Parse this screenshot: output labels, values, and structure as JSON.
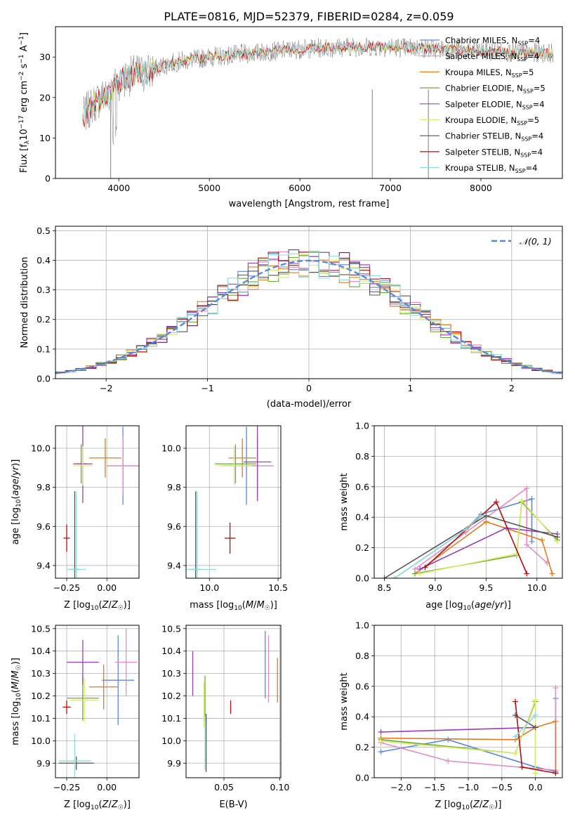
{
  "figure_title": "PLATE=0816, MJD=52379, FIBERID=0284, z=0.059",
  "colors": {
    "Chabrier MILES": "#5b87d9",
    "Salpeter MILES": "#e58ac2",
    "Kroupa MILES": "#e07b1f",
    "Chabrier ELODIE": "#6aaa3a",
    "Salpeter ELODIE": "#9b3cb8",
    "Kroupa ELODIE": "#d9ec6a",
    "Chabrier STELIB": "#555555",
    "Salpeter STELIB": "#b01010",
    "Kroupa STELIB": "#8fdcdc",
    "data": "#808080",
    "normal": "#5b87d9"
  },
  "chart_data": [
    {
      "id": "spectrum",
      "type": "line",
      "xlabel": "wavelength [Angstrom, rest frame]",
      "ylabel": "Flux [f_λ 10^-17 erg cm^-2 s^-1 A^-1]",
      "xlim": [
        3300,
        8900
      ],
      "ylim": [
        0,
        37.5
      ],
      "xticks": [
        4000,
        5000,
        6000,
        7000,
        8000
      ],
      "yticks": [
        0,
        10,
        20,
        30
      ],
      "legend_position": "upper right",
      "series": [
        {
          "name": "Chabrier MILES",
          "nssp": "4"
        },
        {
          "name": "Salpeter MILES",
          "nssp": "4"
        },
        {
          "name": "Kroupa MILES",
          "nssp": "5"
        },
        {
          "name": "Chabrier ELODIE",
          "nssp": "5"
        },
        {
          "name": "Salpeter ELODIE",
          "nssp": "4"
        },
        {
          "name": "Kroupa ELODIE",
          "nssp": "5"
        },
        {
          "name": "Chabrier STELIB",
          "nssp": "4"
        },
        {
          "name": "Salpeter STELIB",
          "nssp": "4"
        },
        {
          "name": "Kroupa STELIB",
          "nssp": "4"
        }
      ],
      "continuum": {
        "x": [
          3600,
          3700,
          3800,
          3900,
          4000,
          4100,
          4200,
          4300,
          4500,
          4700,
          5000,
          5500,
          6000,
          6500,
          7000,
          7500,
          8000,
          8500,
          8800
        ],
        "y": [
          15,
          18,
          20,
          21,
          24,
          25,
          26,
          26,
          28,
          29,
          30,
          31,
          32,
          32.5,
          32.5,
          32,
          31.5,
          31,
          31
        ]
      }
    },
    {
      "id": "residuals",
      "type": "bar",
      "xlabel": "(data-model)/error",
      "ylabel": "Normed distribution",
      "xlim": [
        -2.5,
        2.5
      ],
      "ylim": [
        0,
        0.515
      ],
      "xticks": [
        -2,
        -1,
        0,
        1,
        2
      ],
      "yticks": [
        0.0,
        0.1,
        0.2,
        0.3,
        0.4,
        0.5
      ],
      "grid": true,
      "legend_position": "upper right",
      "normal_label": "𝒩(0, 1)",
      "bin_width": 0.1,
      "bin_start": -2.5
    },
    {
      "id": "age_vs_Z",
      "type": "scatter",
      "xlabel": "Z [log10(Z/Z☉)]",
      "ylabel": "age  [log10(age/yr)]",
      "xlim": [
        -0.32,
        0.2
      ],
      "ylim": [
        9.335,
        10.115
      ],
      "xticks": [
        -0.25,
        0.0
      ],
      "yticks": [
        9.4,
        9.6,
        9.8,
        10.0
      ],
      "grid": true,
      "points": [
        {
          "series": "Chabrier MILES",
          "x": 0.1,
          "y": 9.91,
          "xerr": 0.1,
          "yerr": 0.2
        },
        {
          "series": "Salpeter MILES",
          "x": 0.1,
          "y": 9.91,
          "xerr": 0.1,
          "yerr": 0.15
        },
        {
          "series": "Kroupa MILES",
          "x": -0.01,
          "y": 9.95,
          "xerr": 0.1,
          "yerr": 0.1
        },
        {
          "series": "Chabrier ELODIE",
          "x": -0.16,
          "y": 9.92,
          "xerr": 0.04,
          "yerr": 0.1
        },
        {
          "series": "Salpeter ELODIE",
          "x": -0.15,
          "y": 9.92,
          "xerr": 0.06,
          "yerr": 0.2
        },
        {
          "series": "Kroupa ELODIE",
          "x": -0.15,
          "y": 9.91,
          "xerr": 0.06,
          "yerr": 0.1
        },
        {
          "series": "Chabrier STELIB",
          "x": -0.2,
          "y": 9.38,
          "xerr": 0.03,
          "yerr": 0.4
        },
        {
          "series": "Salpeter STELIB",
          "x": -0.25,
          "y": 9.54,
          "xerr": 0.02,
          "yerr": 0.07
        },
        {
          "series": "Kroupa STELIB",
          "x": -0.19,
          "y": 9.38,
          "xerr": 0.06,
          "yerr": 0.4
        }
      ]
    },
    {
      "id": "age_vs_mass",
      "type": "scatter",
      "xlabel": "mass [log10(M/M☉)]",
      "ylabel": "",
      "xlim": [
        9.83,
        10.52
      ],
      "ylim": [
        9.335,
        10.115
      ],
      "xticks": [
        10.0,
        10.5
      ],
      "yticks": [
        9.4,
        9.6,
        9.8,
        10.0
      ],
      "grid": true,
      "points": [
        {
          "series": "Chabrier MILES",
          "x": 10.27,
          "y": 9.91,
          "xerr": 0.18,
          "yerr": 0.2
        },
        {
          "series": "Salpeter MILES",
          "x": 10.35,
          "y": 9.91,
          "xerr": 0.12,
          "yerr": 0.15
        },
        {
          "series": "Kroupa MILES",
          "x": 10.24,
          "y": 9.95,
          "xerr": 0.1,
          "yerr": 0.1
        },
        {
          "series": "Chabrier ELODIE",
          "x": 10.19,
          "y": 9.92,
          "xerr": 0.15,
          "yerr": 0.1
        },
        {
          "series": "Salpeter ELODIE",
          "x": 10.35,
          "y": 9.93,
          "xerr": 0.1,
          "yerr": 0.2
        },
        {
          "series": "Kroupa ELODIE",
          "x": 10.18,
          "y": 9.91,
          "xerr": 0.13,
          "yerr": 0.1
        },
        {
          "series": "Chabrier STELIB",
          "x": 9.9,
          "y": 9.38,
          "xerr": 0.04,
          "yerr": 0.4
        },
        {
          "series": "Salpeter STELIB",
          "x": 10.15,
          "y": 9.54,
          "xerr": 0.04,
          "yerr": 0.08
        },
        {
          "series": "Kroupa STELIB",
          "x": 9.91,
          "y": 9.38,
          "xerr": 0.14,
          "yerr": 0.4
        }
      ]
    },
    {
      "id": "mw_vs_age",
      "type": "line",
      "xlabel": "age  [log10(age/yr)]",
      "ylabel": "mass weight",
      "xlim": [
        8.4,
        10.25
      ],
      "ylim": [
        0,
        1.0
      ],
      "xticks": [
        8.5,
        9.0,
        9.5,
        10.0
      ],
      "yticks": [
        0.0,
        0.2,
        0.4,
        0.6,
        0.8,
        1.0
      ],
      "grid": true,
      "series": [
        {
          "name": "Chabrier MILES",
          "x": [
            8.6,
            9.3,
            9.45,
            9.95,
            9.95
          ],
          "y": [
            0.0,
            0.32,
            0.42,
            0.52,
            0.24
          ]
        },
        {
          "name": "Salpeter MILES",
          "x": [
            8.8,
            9.3,
            9.9,
            9.9,
            10.1
          ],
          "y": [
            0.06,
            0.3,
            0.59,
            0.22,
            0.1
          ]
        },
        {
          "name": "Kroupa MILES",
          "x": [
            8.8,
            9.5,
            10.05,
            10.15
          ],
          "y": [
            0.03,
            0.37,
            0.25,
            0.03
          ]
        },
        {
          "name": "Chabrier ELODIE",
          "x": [
            8.8,
            9.8,
            9.85,
            10.2
          ],
          "y": [
            0.03,
            0.15,
            0.5,
            0.25
          ]
        },
        {
          "name": "Salpeter ELODIE",
          "x": [
            8.85,
            9.7,
            10.2
          ],
          "y": [
            0.06,
            0.33,
            0.29
          ]
        },
        {
          "name": "Kroupa ELODIE",
          "x": [
            8.85,
            9.8,
            9.85,
            10.2
          ],
          "y": [
            0.03,
            0.16,
            0.51,
            0.24
          ]
        },
        {
          "name": "Chabrier STELIB",
          "x": [
            8.5,
            9.5,
            10.2
          ],
          "y": [
            0.0,
            0.41,
            0.27
          ]
        },
        {
          "name": "Salpeter STELIB",
          "x": [
            8.9,
            9.6,
            9.9
          ],
          "y": [
            0.07,
            0.5,
            0.03
          ]
        },
        {
          "name": "Kroupa STELIB",
          "x": [
            8.6,
            9.3,
            9.45
          ],
          "y": [
            0.0,
            0.32,
            0.41
          ]
        }
      ]
    },
    {
      "id": "mass_vs_Z",
      "type": "scatter",
      "xlabel": "Z [log10(Z/Z☉)]",
      "ylabel": "mass [log10(M/M☉)]",
      "xlim": [
        -0.32,
        0.2
      ],
      "ylim": [
        9.835,
        10.515
      ],
      "xticks": [
        -0.25,
        0.0
      ],
      "yticks": [
        9.9,
        10.0,
        10.1,
        10.2,
        10.3,
        10.4,
        10.5
      ],
      "grid": true,
      "points": [
        {
          "series": "Chabrier MILES",
          "x": 0.07,
          "y": 10.27,
          "xerr": 0.1,
          "yerr": 0.2
        },
        {
          "series": "Salpeter MILES",
          "x": 0.12,
          "y": 10.35,
          "xerr": 0.07,
          "yerr": 0.15
        },
        {
          "series": "Kroupa MILES",
          "x": -0.02,
          "y": 10.24,
          "xerr": 0.09,
          "yerr": 0.1
        },
        {
          "series": "Chabrier ELODIE",
          "x": -0.15,
          "y": 10.19,
          "xerr": 0.1,
          "yerr": 0.1
        },
        {
          "series": "Salpeter ELODIE",
          "x": -0.15,
          "y": 10.35,
          "xerr": 0.1,
          "yerr": 0.1
        },
        {
          "series": "Kroupa ELODIE",
          "x": -0.14,
          "y": 10.18,
          "xerr": 0.09,
          "yerr": 0.1
        },
        {
          "series": "Chabrier STELIB",
          "x": -0.19,
          "y": 9.9,
          "xerr": 0.11,
          "yerr": 0.03
        },
        {
          "series": "Salpeter STELIB",
          "x": -0.25,
          "y": 10.15,
          "xerr": 0.025,
          "yerr": 0.03
        },
        {
          "series": "Kroupa STELIB",
          "x": -0.2,
          "y": 9.91,
          "xerr": 0.1,
          "yerr": 0.12
        }
      ]
    },
    {
      "id": "mass_vs_ebv",
      "type": "scatter",
      "xlabel": "E(B-V)",
      "ylabel": "",
      "xlim": [
        0.016,
        0.101
      ],
      "ylim": [
        9.835,
        10.515
      ],
      "xticks": [
        0.05,
        0.1
      ],
      "yticks": [
        9.9,
        10.0,
        10.1,
        10.2,
        10.3,
        10.4,
        10.5
      ],
      "grid": true,
      "points": [
        {
          "series": "Chabrier MILES",
          "x": 0.087,
          "y": 10.34,
          "yerr": 0.15
        },
        {
          "series": "Salpeter MILES",
          "x": 0.09,
          "y": 10.32,
          "yerr": 0.15
        },
        {
          "series": "Kroupa MILES",
          "x": 0.098,
          "y": 10.27,
          "yerr": 0.1
        },
        {
          "series": "Chabrier ELODIE",
          "x": 0.033,
          "y": 10.19,
          "yerr": 0.1
        },
        {
          "series": "Salpeter ELODIE",
          "x": 0.022,
          "y": 10.3,
          "yerr": 0.1
        },
        {
          "series": "Kroupa ELODIE",
          "x": 0.032,
          "y": 10.16,
          "yerr": 0.1
        },
        {
          "series": "Chabrier STELIB",
          "x": 0.034,
          "y": 9.99,
          "yerr": 0.13
        },
        {
          "series": "Salpeter STELIB",
          "x": 0.056,
          "y": 10.15,
          "yerr": 0.03
        },
        {
          "series": "Kroupa STELIB",
          "x": 0.033,
          "y": 9.99,
          "yerr": 0.12
        }
      ]
    },
    {
      "id": "mw_vs_Z",
      "type": "line",
      "xlabel": "Z [log10(Z/Z☉)]",
      "ylabel": "mass weight",
      "xlim": [
        -2.4,
        0.4
      ],
      "ylim": [
        0,
        1.0
      ],
      "xticks": [
        -2.0,
        -1.5,
        -1.0,
        -0.5,
        0.0
      ],
      "yticks": [
        0.0,
        0.2,
        0.4,
        0.6,
        0.8,
        1.0
      ],
      "grid": true,
      "series": [
        {
          "name": "Chabrier MILES",
          "x": [
            -2.3,
            -1.3,
            0.0,
            0.3,
            0.3
          ],
          "y": [
            0.17,
            0.25,
            0.07,
            0.04,
            0.52
          ]
        },
        {
          "name": "Salpeter MILES",
          "x": [
            -2.3,
            -1.3,
            0.0,
            0.3,
            0.3
          ],
          "y": [
            0.23,
            0.11,
            0.06,
            0.05,
            0.59
          ]
        },
        {
          "name": "Kroupa MILES",
          "x": [
            -2.3,
            -0.3,
            0.0,
            0.3,
            0.3
          ],
          "y": [
            0.26,
            0.25,
            0.33,
            0.37,
            0.03
          ]
        },
        {
          "name": "Chabrier ELODIE",
          "x": [
            -2.3,
            -0.3,
            0.0,
            0.0
          ],
          "y": [
            0.25,
            0.16,
            0.5,
            0.03
          ]
        },
        {
          "name": "Salpeter ELODIE",
          "x": [
            -2.3,
            0.0
          ],
          "y": [
            0.3,
            0.33
          ]
        },
        {
          "name": "Kroupa ELODIE",
          "x": [
            -2.3,
            -0.3,
            0.0,
            0.0
          ],
          "y": [
            0.24,
            0.16,
            0.51,
            0.03
          ]
        },
        {
          "name": "Chabrier STELIB",
          "x": [
            -0.3,
            0.0
          ],
          "y": [
            0.41,
            0.33
          ]
        },
        {
          "name": "Salpeter STELIB",
          "x": [
            -0.3,
            -0.2,
            0.3
          ],
          "y": [
            0.5,
            0.07,
            0.03
          ]
        },
        {
          "name": "Kroupa STELIB",
          "x": [
            -0.3,
            0.0
          ],
          "y": [
            0.27,
            0.41
          ]
        }
      ]
    }
  ]
}
